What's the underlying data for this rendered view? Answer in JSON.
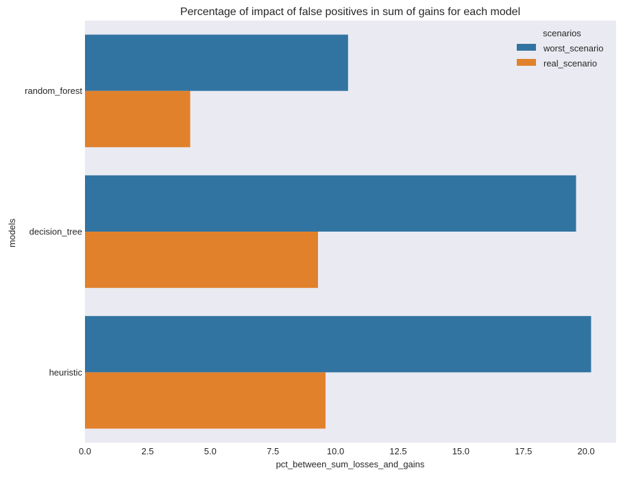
{
  "chart_data": {
    "type": "bar",
    "orientation": "horizontal",
    "title": "Percentage of impact of false positives in sum of gains for each model",
    "xlabel": "pct_between_sum_losses_and_gains",
    "ylabel": "models",
    "categories": [
      "random_forest",
      "decision_tree",
      "heuristic"
    ],
    "series": [
      {
        "name": "worst_scenario",
        "color": "#3274a1",
        "values": [
          10.5,
          19.6,
          20.2
        ]
      },
      {
        "name": "real_scenario",
        "color": "#e1812c",
        "values": [
          4.2,
          9.3,
          9.6
        ]
      }
    ],
    "xlim": [
      0,
      21.2
    ],
    "xticks": [
      "0.0",
      "2.5",
      "5.0",
      "7.5",
      "10.0",
      "12.5",
      "15.0",
      "17.5",
      "20.0"
    ],
    "legend": {
      "title": "scenarios",
      "placement": "top-right"
    },
    "grid": false,
    "style": {
      "plot_background": "#eaeaf2"
    }
  }
}
